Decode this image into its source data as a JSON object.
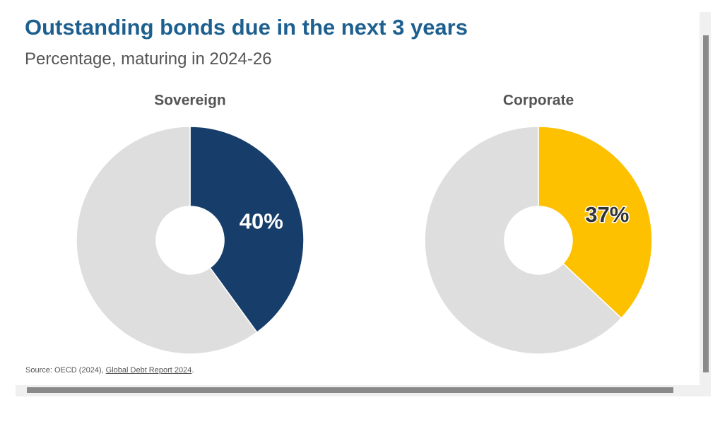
{
  "header": {
    "title": "Outstanding bonds due in the next 3 years",
    "subtitle": "Percentage, maturing in 2024-26"
  },
  "source": {
    "prefix": "Source: OECD (2024),",
    "link": "Global Debt Report 2024",
    "suffix": "."
  },
  "chart_data": [
    {
      "type": "pie",
      "title": "Sovereign",
      "values": [
        40,
        60
      ],
      "value_labels": [
        "40%",
        null
      ],
      "colors": [
        "#173e6b",
        "#dedede"
      ],
      "label_color": "#ffffff",
      "donut": true
    },
    {
      "type": "pie",
      "title": "Corporate",
      "values": [
        37,
        63
      ],
      "value_labels": [
        "37%",
        null
      ],
      "colors": [
        "#fdc100",
        "#dedede"
      ],
      "label_color": "#333333",
      "donut": true
    }
  ]
}
